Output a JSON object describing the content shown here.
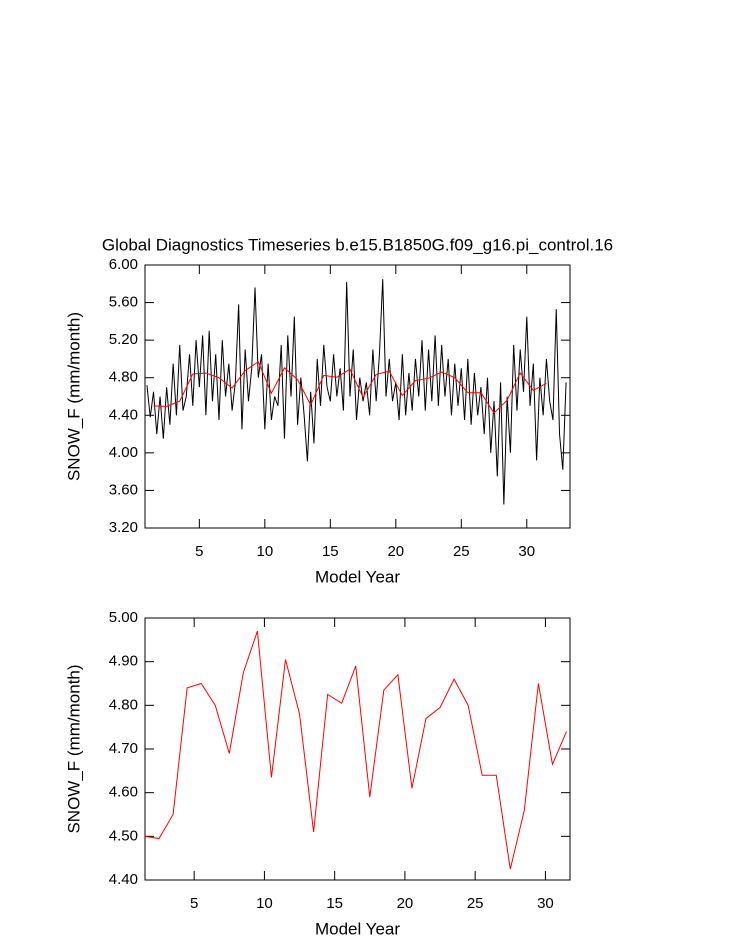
{
  "chart_data": [
    {
      "type": "line",
      "title": "Global Diagnostics Timeseries b.e15.B1850G.f09_g16.pi_control.16",
      "x_label": "Model Year",
      "y_label": "SNOW_F (mm/month)",
      "xlim": [
        0.85,
        33.3
      ],
      "ylim": [
        3.2,
        6.0
      ],
      "xticks": [
        5,
        10,
        15,
        20,
        25,
        30
      ],
      "yticks": [
        {
          "value": 3.2,
          "label": "3.20"
        },
        {
          "value": 3.6,
          "label": "3.60"
        },
        {
          "value": 4.0,
          "label": "4.00"
        },
        {
          "value": 4.4,
          "label": "4.40"
        },
        {
          "value": 4.8,
          "label": "4.80"
        },
        {
          "value": 5.2,
          "label": "5.20"
        },
        {
          "value": 5.6,
          "label": "5.60"
        },
        {
          "value": 6.0,
          "label": "6.00"
        }
      ],
      "series": [
        {
          "color": "#000000",
          "x": [
            1.0,
            1.25,
            1.5,
            1.75,
            2.0,
            2.25,
            2.5,
            2.75,
            3.0,
            3.25,
            3.5,
            3.75,
            4.0,
            4.25,
            4.5,
            4.75,
            5.0,
            5.25,
            5.5,
            5.75,
            6.0,
            6.25,
            6.5,
            6.75,
            7.0,
            7.25,
            7.5,
            7.75,
            8.0,
            8.25,
            8.5,
            8.75,
            9.0,
            9.25,
            9.5,
            9.75,
            10.0,
            10.25,
            10.5,
            10.75,
            11.0,
            11.25,
            11.5,
            11.75,
            12.0,
            12.25,
            12.5,
            12.75,
            13.0,
            13.25,
            13.5,
            13.75,
            14.0,
            14.25,
            14.5,
            14.75,
            15.0,
            15.25,
            15.5,
            15.75,
            16.0,
            16.25,
            16.5,
            16.75,
            17.0,
            17.25,
            17.5,
            17.75,
            18.0,
            18.25,
            18.5,
            18.75,
            19.0,
            19.25,
            19.5,
            19.75,
            20.0,
            20.25,
            20.5,
            20.75,
            21.0,
            21.25,
            21.5,
            21.75,
            22.0,
            22.25,
            22.5,
            22.75,
            23.0,
            23.25,
            23.5,
            23.75,
            24.0,
            24.25,
            24.5,
            24.75,
            25.0,
            25.25,
            25.5,
            25.75,
            26.0,
            26.25,
            26.5,
            26.75,
            27.0,
            27.25,
            27.5,
            27.75,
            28.0,
            28.25,
            28.5,
            28.75,
            29.0,
            29.25,
            29.5,
            29.75,
            30.0,
            30.25,
            30.5,
            30.75,
            31.0,
            31.25,
            31.5,
            31.75,
            32.0,
            32.25,
            32.5,
            32.75,
            33.0
          ],
          "values": [
            4.72,
            4.38,
            4.65,
            4.2,
            4.6,
            4.15,
            4.7,
            4.3,
            4.95,
            4.4,
            5.15,
            4.45,
            4.6,
            5.05,
            4.5,
            5.2,
            4.7,
            5.25,
            4.4,
            5.3,
            4.55,
            5.05,
            4.35,
            5.2,
            4.6,
            4.95,
            4.45,
            4.75,
            5.58,
            4.25,
            5.1,
            4.55,
            4.9,
            5.76,
            4.8,
            5.05,
            4.25,
            4.95,
            4.35,
            4.6,
            4.5,
            5.15,
            4.15,
            5.25,
            4.6,
            5.45,
            4.3,
            4.8,
            4.4,
            3.91,
            4.65,
            4.1,
            5.0,
            4.5,
            5.15,
            4.7,
            4.55,
            5.05,
            4.6,
            4.9,
            4.45,
            5.82,
            4.6,
            5.1,
            4.35,
            4.8,
            4.55,
            4.75,
            4.4,
            5.1,
            4.55,
            5.05,
            5.85,
            4.6,
            5.0,
            4.55,
            4.75,
            4.35,
            5.05,
            4.4,
            4.85,
            4.45,
            5.0,
            4.6,
            5.2,
            4.45,
            5.1,
            4.55,
            5.25,
            4.5,
            5.15,
            4.6,
            5.0,
            4.4,
            4.95,
            4.5,
            4.9,
            4.35,
            5.0,
            4.3,
            4.85,
            4.4,
            4.7,
            4.2,
            4.8,
            4.0,
            4.55,
            3.75,
            4.75,
            3.45,
            4.6,
            4.0,
            5.15,
            4.45,
            5.1,
            4.65,
            5.45,
            4.5,
            4.95,
            3.92,
            4.8,
            4.4,
            5.0,
            4.55,
            4.35,
            5.53,
            4.2,
            3.82,
            4.75
          ]
        },
        {
          "color": "#ff0000",
          "x": [
            1.5,
            2.5,
            3.5,
            4.5,
            5.5,
            6.5,
            7.5,
            8.5,
            9.5,
            10.5,
            11.5,
            12.5,
            13.5,
            14.5,
            15.5,
            16.5,
            17.5,
            18.5,
            19.5,
            20.5,
            21.5,
            22.5,
            23.5,
            24.5,
            25.5,
            26.5,
            27.5,
            28.5,
            29.5,
            30.5,
            31.5
          ],
          "values": [
            4.5,
            4.495,
            4.55,
            4.84,
            4.85,
            4.8,
            4.69,
            4.875,
            4.97,
            4.635,
            4.905,
            4.78,
            4.51,
            4.825,
            4.805,
            4.89,
            4.59,
            4.835,
            4.87,
            4.61,
            4.77,
            4.795,
            4.86,
            4.8,
            4.64,
            4.64,
            4.425,
            4.56,
            4.85,
            4.665,
            4.74
          ]
        }
      ]
    },
    {
      "type": "line",
      "x_label": "Model Year",
      "y_label": "SNOW_F (mm/month)",
      "xlim": [
        1.5,
        31.75
      ],
      "ylim": [
        4.4,
        5.0
      ],
      "xticks": [
        5,
        10,
        15,
        20,
        25,
        30
      ],
      "yticks": [
        {
          "value": 4.4,
          "label": "4.40"
        },
        {
          "value": 4.5,
          "label": "4.50"
        },
        {
          "value": 4.6,
          "label": "4.60"
        },
        {
          "value": 4.7,
          "label": "4.70"
        },
        {
          "value": 4.8,
          "label": "4.80"
        },
        {
          "value": 4.9,
          "label": "4.90"
        },
        {
          "value": 5.0,
          "label": "5.00"
        }
      ],
      "series": [
        {
          "color": "#ff0000",
          "x": [
            1.5,
            2.5,
            3.5,
            4.5,
            5.5,
            6.5,
            7.5,
            8.5,
            9.5,
            10.5,
            11.5,
            12.5,
            13.5,
            14.5,
            15.5,
            16.5,
            17.5,
            18.5,
            19.5,
            20.5,
            21.5,
            22.5,
            23.5,
            24.5,
            25.5,
            26.5,
            27.5,
            28.5,
            29.5,
            30.5,
            31.5
          ],
          "values": [
            4.5,
            4.495,
            4.55,
            4.84,
            4.85,
            4.8,
            4.69,
            4.875,
            4.97,
            4.635,
            4.905,
            4.78,
            4.51,
            4.825,
            4.805,
            4.89,
            4.59,
            4.835,
            4.87,
            4.61,
            4.77,
            4.795,
            4.86,
            4.8,
            4.64,
            4.64,
            4.425,
            4.56,
            4.85,
            4.665,
            4.74
          ]
        }
      ]
    }
  ]
}
